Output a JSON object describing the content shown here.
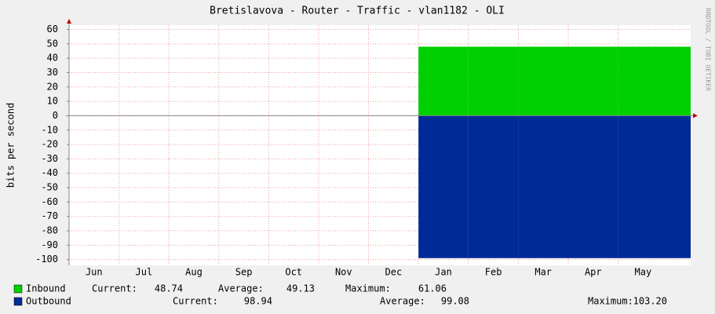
{
  "chart_data": {
    "type": "area",
    "title": "Bretislavova - Router - Traffic - vlan1182 - OLI",
    "y_label": "bits per second",
    "watermark": "RRDTOOL / TOBI OETIKER",
    "categories": [
      "Jun",
      "Jul",
      "Aug",
      "Sep",
      "Oct",
      "Nov",
      "Dec",
      "Jan",
      "Feb",
      "Mar",
      "Apr",
      "May"
    ],
    "series": [
      {
        "name": "Inbound",
        "color": "#00cf00",
        "values": [
          null,
          null,
          null,
          null,
          null,
          null,
          null,
          48,
          48,
          48,
          48,
          48
        ],
        "stats": [
          {
            "label": "Current:",
            "value": "48.74"
          },
          {
            "label": "Average:",
            "value": "49.13"
          },
          {
            "label": "Maximum:",
            "value": "61.06"
          }
        ]
      },
      {
        "name": "Outbound",
        "color": "#002a97",
        "values": [
          null,
          null,
          null,
          null,
          null,
          null,
          null,
          -99,
          -99,
          -99,
          -99,
          -99
        ],
        "stats": [
          {
            "label": "Current:",
            "value": "98.94"
          },
          {
            "label": "Average:",
            "value": "99.08"
          },
          {
            "label": "Maximum:",
            "value": "103.20"
          }
        ]
      }
    ],
    "ylim": [
      -104,
      63
    ],
    "yticks": [
      -100,
      -90,
      -80,
      -70,
      -60,
      -50,
      -40,
      -30,
      -20,
      -10,
      0,
      10,
      20,
      30,
      40,
      50,
      60
    ],
    "grid": true
  }
}
